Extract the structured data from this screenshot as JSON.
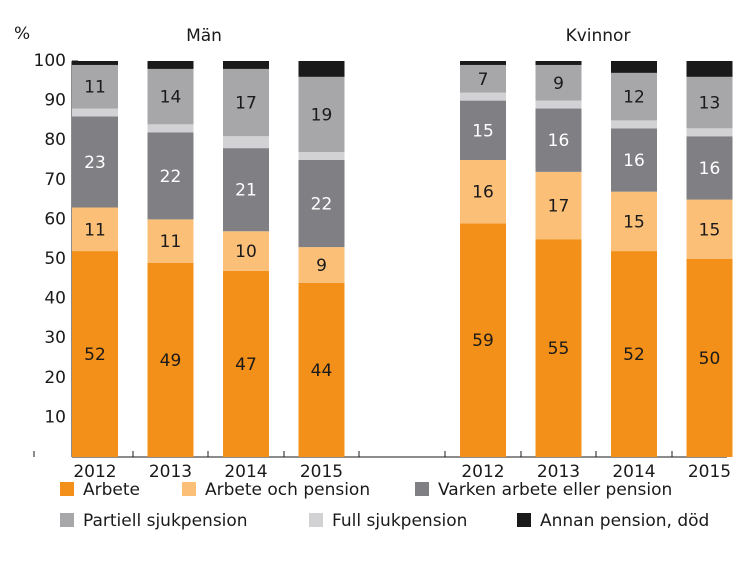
{
  "chart_data": {
    "type": "stacked_bar",
    "y_label": "%",
    "group_labels": [
      "Män",
      "Kvinnor"
    ],
    "categories": [
      "2012",
      "2013",
      "2014",
      "2015",
      null,
      "2012",
      "2013",
      "2014",
      "2015"
    ],
    "ylim": [
      0,
      100
    ],
    "yticks": [
      10,
      20,
      30,
      40,
      50,
      60,
      70,
      80,
      90,
      100
    ],
    "series": [
      {
        "name": "Arbete",
        "color": "#f39019",
        "label_color": "#1a1a1a",
        "labels": true,
        "values": [
          52,
          49,
          47,
          44,
          null,
          59,
          55,
          52,
          50
        ]
      },
      {
        "name": "Arbete och pension",
        "color": "#fbbf78",
        "label_color": "#1a1a1a",
        "labels": true,
        "values": [
          11,
          11,
          10,
          9,
          null,
          16,
          17,
          15,
          15
        ]
      },
      {
        "name": "Varken arbete eller pension",
        "color": "#808084",
        "label_color": "#ffffff",
        "labels": true,
        "values": [
          23,
          22,
          21,
          22,
          null,
          15,
          16,
          16,
          16
        ]
      },
      {
        "name": "Full sjukpension",
        "color": "#d2d2d4",
        "label_color": "#1a1a1a",
        "labels": false,
        "values": [
          2,
          2,
          3,
          2,
          null,
          2,
          2,
          2,
          2
        ]
      },
      {
        "name": "Partiell sjukpension",
        "color": "#a7a7aa",
        "label_color": "#1a1a1a",
        "labels": true,
        "values": [
          11,
          14,
          17,
          19,
          null,
          7,
          9,
          12,
          13
        ]
      },
      {
        "name": "Annan pension, död",
        "color": "#1a1a1a",
        "label_color": "#ffffff",
        "labels": false,
        "values": [
          1,
          2,
          2,
          4,
          null,
          1,
          1,
          3,
          4
        ]
      }
    ]
  }
}
